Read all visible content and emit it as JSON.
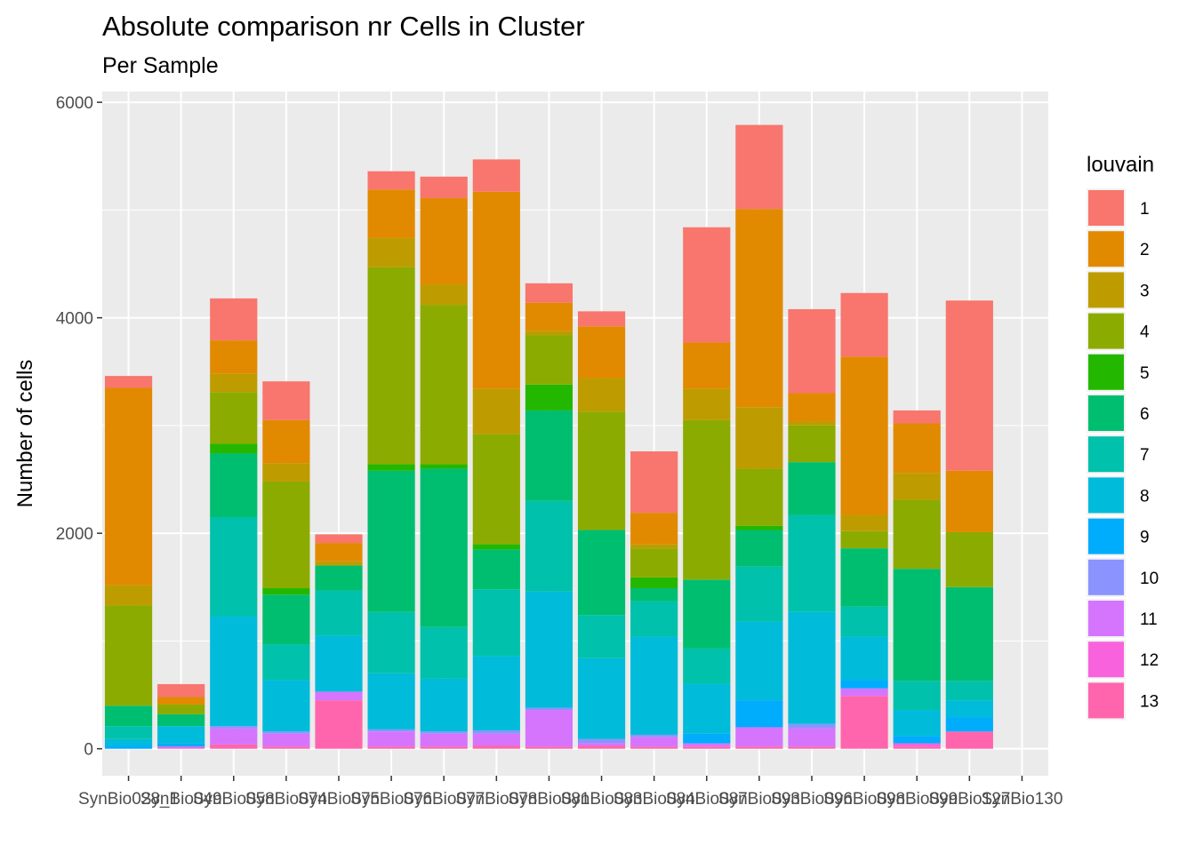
{
  "chart_data": {
    "type": "bar",
    "stacked": true,
    "title": "Absolute comparison nr Cells in Cluster",
    "subtitle": "Per Sample",
    "xlabel": "",
    "ylabel": "Number of cells",
    "ylim": [
      -250,
      6100
    ],
    "yticks": [
      0,
      2000,
      4000,
      6000
    ],
    "grid": true,
    "legend_position": "right",
    "legend_title": "louvain",
    "categories": [
      "SynBio028_1",
      "SynBio049",
      "SynBio058",
      "SynBio074",
      "SynBio075",
      "SynBio076",
      "SynBio077",
      "SynBio078",
      "SynBio081",
      "SynBio083",
      "SynBio084",
      "SynBio087",
      "SynBio093",
      "SynBio096",
      "SynBio098",
      "SynBio099",
      "SynBio127",
      "SynBio130"
    ],
    "x_tick_labels": [
      "SynBio028_1",
      "SynBio049",
      "SynBio058",
      "SynBio074",
      "SynBio075",
      "SynBio076",
      "SynBio077",
      "SynBio078",
      "SynBio081",
      "SynBio083",
      "SynBio084",
      "SynBio087",
      "SynBio093",
      "SynBio096",
      "SynBio098",
      "SynBio099",
      "SynBio127",
      "SynBio130"
    ],
    "stack_order": "13 at bottom, 1 at top",
    "series": [
      {
        "name": "1",
        "color": "#F8766D",
        "values": [
          110,
          120,
          390,
          360,
          80,
          170,
          200,
          300,
          180,
          140,
          570,
          1070,
          780,
          780,
          590,
          120,
          1580,
          0
        ]
      },
      {
        "name": "2",
        "color": "#E18A00",
        "values": [
          1830,
          70,
          310,
          400,
          170,
          450,
          800,
          1830,
          260,
          480,
          290,
          430,
          1840,
          260,
          1470,
          460,
          570,
          0
        ]
      },
      {
        "name": "3",
        "color": "#BE9C00",
        "values": [
          190,
          0,
          170,
          170,
          40,
          270,
          190,
          420,
          40,
          310,
          40,
          290,
          570,
          40,
          150,
          250,
          0,
          0
        ]
      },
      {
        "name": "4",
        "color": "#8CAB00",
        "values": [
          930,
          90,
          480,
          990,
          0,
          1830,
          1480,
          1020,
          460,
          1100,
          270,
          1480,
          530,
          340,
          160,
          640,
          510,
          0
        ]
      },
      {
        "name": "5",
        "color": "#24B700",
        "values": [
          0,
          0,
          90,
          60,
          0,
          60,
          40,
          50,
          240,
          0,
          100,
          0,
          40,
          0,
          0,
          0,
          0,
          0
        ]
      },
      {
        "name": "6",
        "color": "#00BE70",
        "values": [
          190,
          110,
          590,
          460,
          230,
          1310,
          1470,
          370,
          840,
          790,
          120,
          640,
          340,
          490,
          540,
          1040,
          870,
          0
        ]
      },
      {
        "name": "7",
        "color": "#00C1AB",
        "values": [
          120,
          0,
          920,
          330,
          420,
          570,
          480,
          620,
          840,
          400,
          330,
          330,
          510,
          900,
          280,
          270,
          180,
          0
        ]
      },
      {
        "name": "8",
        "color": "#00BBDA",
        "values": [
          60,
          160,
          1020,
          480,
          520,
          520,
          490,
          690,
          1080,
          750,
          910,
          460,
          730,
          1040,
          400,
          240,
          160,
          0
        ]
      },
      {
        "name": "9",
        "color": "#00ACFC",
        "values": [
          30,
          30,
          0,
          0,
          0,
          0,
          0,
          0,
          0,
          0,
          0,
          90,
          250,
          0,
          80,
          70,
          130,
          0
        ]
      },
      {
        "name": "10",
        "color": "#8B93FF",
        "values": [
          0,
          0,
          20,
          20,
          0,
          20,
          20,
          30,
          20,
          40,
          20,
          0,
          0,
          40,
          0,
          0,
          0,
          0
        ]
      },
      {
        "name": "11",
        "color": "#D575FE",
        "values": [
          0,
          0,
          150,
          120,
          80,
          140,
          120,
          110,
          340,
          20,
          90,
          30,
          180,
          170,
          70,
          0,
          0,
          0
        ]
      },
      {
        "name": "12",
        "color": "#F962DD",
        "values": [
          0,
          20,
          0,
          0,
          0,
          0,
          0,
          0,
          0,
          0,
          0,
          0,
          0,
          0,
          0,
          30,
          0,
          0
        ]
      },
      {
        "name": "13",
        "color": "#FF65AC",
        "values": [
          0,
          0,
          40,
          20,
          450,
          20,
          20,
          30,
          20,
          30,
          20,
          20,
          20,
          20,
          490,
          20,
          160,
          0
        ]
      }
    ]
  }
}
